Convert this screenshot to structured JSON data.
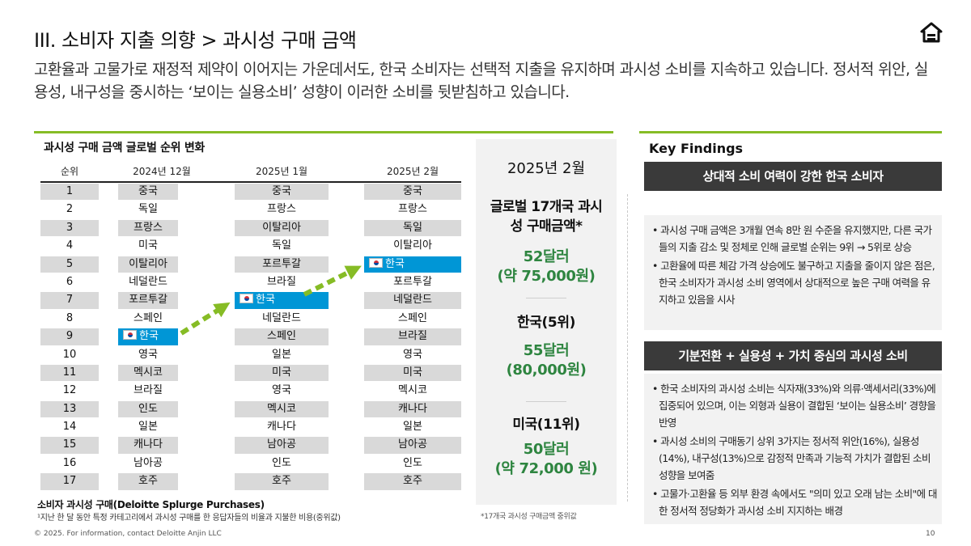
{
  "header": {
    "title": "III. 소비자 지출 의향 > 과시성 구매 금액",
    "subtitle": "고환율과 고물가로 재정적 제약이 이어지는 가운데서도, 한국 소비자는 선택적 지출을 유지하며 과시성 소비를 지속하고 있습니다. 정서적 위안, 실용성, 내구성을 중시하는 ‘보이는 실용소비’ 성향이 이러한 소비를 뒷받침하고 있습니다.",
    "home_icon": "home-icon"
  },
  "ranking": {
    "title": "과시성 구매 금액 글로벌 순위 변화",
    "columns": [
      "순위",
      "2024년 12월",
      "2025년 1월",
      "2025년 2월"
    ],
    "highlight_country": "한국",
    "highlight_color": "#0096d6",
    "rows": [
      {
        "rank": "1",
        "dec": "중국",
        "jan": "중국",
        "feb": "중국"
      },
      {
        "rank": "2",
        "dec": "독일",
        "jan": "프랑스",
        "feb": "프랑스"
      },
      {
        "rank": "3",
        "dec": "프랑스",
        "jan": "이탈리아",
        "feb": "독일"
      },
      {
        "rank": "4",
        "dec": "미국",
        "jan": "독일",
        "feb": "이탈리아"
      },
      {
        "rank": "5",
        "dec": "이탈리아",
        "jan": "포르투갈",
        "feb": "한국"
      },
      {
        "rank": "6",
        "dec": "네덜란드",
        "jan": "브라질",
        "feb": "포르투갈"
      },
      {
        "rank": "7",
        "dec": "포르투갈",
        "jan": "한국",
        "feb": "네덜란드"
      },
      {
        "rank": "8",
        "dec": "스페인",
        "jan": "네덜란드",
        "feb": "스페인"
      },
      {
        "rank": "9",
        "dec": "한국",
        "jan": "스페인",
        "feb": "브라질"
      },
      {
        "rank": "10",
        "dec": "영국",
        "jan": "일본",
        "feb": "영국"
      },
      {
        "rank": "11",
        "dec": "멕시코",
        "jan": "미국",
        "feb": "미국"
      },
      {
        "rank": "12",
        "dec": "브라질",
        "jan": "영국",
        "feb": "멕시코"
      },
      {
        "rank": "13",
        "dec": "인도",
        "jan": "멕시코",
        "feb": "캐나다"
      },
      {
        "rank": "14",
        "dec": "일본",
        "jan": "캐나다",
        "feb": "일본"
      },
      {
        "rank": "15",
        "dec": "캐나다",
        "jan": "남아공",
        "feb": "남아공"
      },
      {
        "rank": "16",
        "dec": "남아공",
        "jan": "인도",
        "feb": "인도"
      },
      {
        "rank": "17",
        "dec": "호주",
        "jan": "호주",
        "feb": "호주"
      }
    ],
    "arrow_color": "#86bc25",
    "footnote_title": "소비자 과시성 구매(Deloitte Splurge Purchases)",
    "footnote_text": "¹지난 한 달 동안 특정 카테고리에서 과시성 구매를 한 응답자들의 비율과 지불한 비용(중위값)"
  },
  "summary": {
    "month": "2025년 2월",
    "global_title": "글로벌 17개국 과시성 구매금액*",
    "global_value_usd": "52달러",
    "global_value_krw": "(약 75,000원)",
    "korea_label": "한국(5위)",
    "korea_value_usd": "55달러",
    "korea_value_krw": "(80,000원)",
    "us_label": "미국(11위)",
    "us_value_usd": "50달러",
    "us_value_krw": "(약 72,000 원)",
    "footnote": "*17개국 과시성 구매금액 중위값"
  },
  "key_findings": {
    "title": "Key Findings",
    "sections": [
      {
        "heading": "상대적 소비 여력이 강한 한국 소비자",
        "bullets": [
          "• 과시성 구매 금액은 3개월 연속 8만 원 수준을 유지했지만, 다른 국가들의 지출 감소 및 정체로 인해 글로벌 순위는 9위 → 5위로 상승",
          "• 고환율에 따른 체감 가격 상승에도 불구하고 지출을 줄이지 않은 점은, 한국 소비자가 과시성 소비 영역에서 상대적으로 높은 구매 여력을 유지하고 있음을 시사"
        ]
      },
      {
        "heading": "기분전환 + 실용성 + 가치 중심의 과시성 소비",
        "bullets": [
          "• 한국 소비자의 과시성 소비는 식자재(33%)와 의류·액세서리(33%)에 집중되어 있으며, 이는 외형과 실용이 결합된 ‘보이는 실용소비’ 경향을 반영",
          "• 과시성 소비의 구매동기 상위 3가지는 정서적 위안(16%), 실용성(14%), 내구성(13%)으로 감정적 만족과 기능적 가치가 결합된 소비 성향을 보여줌",
          "• 고물가·고환율 등 외부 환경 속에서도 \"의미 있고 오래 남는 소비\"에 대한 정서적 정당화가 과시성 소비 지지하는 배경"
        ]
      }
    ]
  },
  "footer": {
    "copyright": "© 2025. For information, contact Deloitte Anjin LLC",
    "page_number": "10"
  }
}
